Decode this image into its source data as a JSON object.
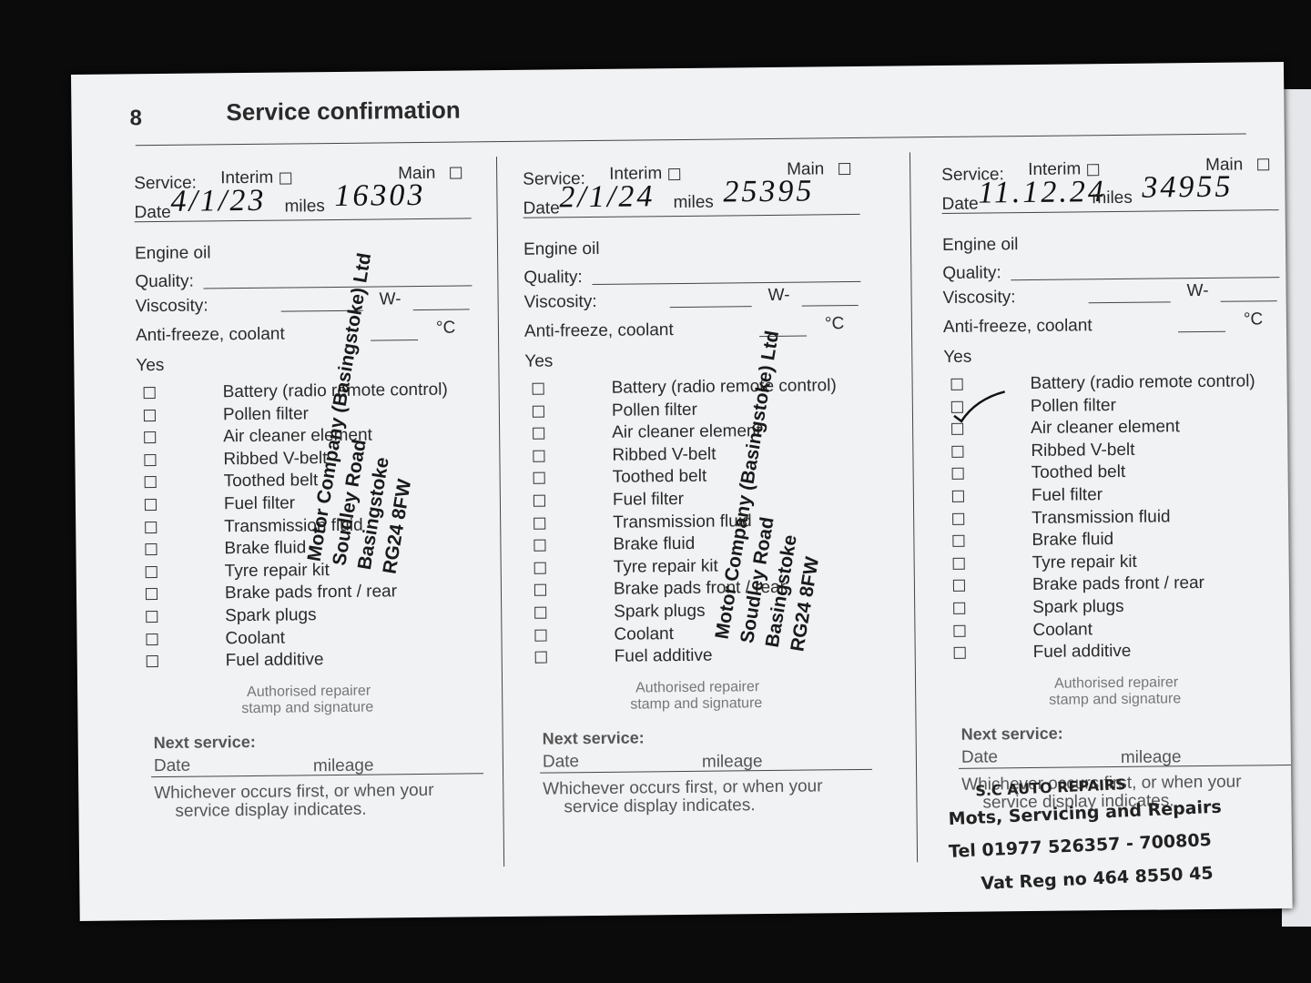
{
  "page_number": "8",
  "title": "Service confirmation",
  "form": {
    "service": "Service:",
    "interim": "Interim",
    "main": "Main",
    "date": "Date",
    "miles": "miles",
    "engine_oil": "Engine oil",
    "quality": "Quality:",
    "viscosity": "Viscosity:",
    "w": "W-",
    "antifreeze": "Anti-freeze, coolant",
    "celsius": "°C",
    "yes": "Yes",
    "items": [
      "Battery (radio remote control)",
      "Pollen filter",
      "Air cleaner element",
      "Ribbed V-belt",
      "Toothed belt",
      "Fuel filter",
      "Transmission fluid",
      "Brake fluid",
      "Tyre repair kit",
      "Brake pads front / rear",
      "Spark plugs",
      "Coolant",
      "Fuel additive"
    ],
    "authorised": "Authorised repairer",
    "stamp_signature": "stamp and signature",
    "next_service": "Next service:",
    "next_date": "Date",
    "mileage": "mileage",
    "note_line1": "Whichever occurs first, or when your",
    "note_line2": "service display indicates."
  },
  "entries": [
    {
      "date": "4/1/23",
      "miles": "16303",
      "stamp": [
        "Motor Company (Basingstoke) Ltd",
        "Soudley Road",
        "Basingstoke",
        "RG24 8FW"
      ]
    },
    {
      "date": "2/1/24",
      "miles": "25395",
      "stamp": [
        "Motor Company (Basingstoke) Ltd",
        "Soudley Road",
        "Basingstoke",
        "RG24 8FW"
      ]
    },
    {
      "date": "11.12.24",
      "miles": "34955",
      "stamp": [
        "S.C AUTO REPAIRS",
        "Mots, Servicing and Repairs",
        "Tel 01977 526357 - 700805",
        "Vat Reg no 464 8550 45"
      ]
    }
  ]
}
